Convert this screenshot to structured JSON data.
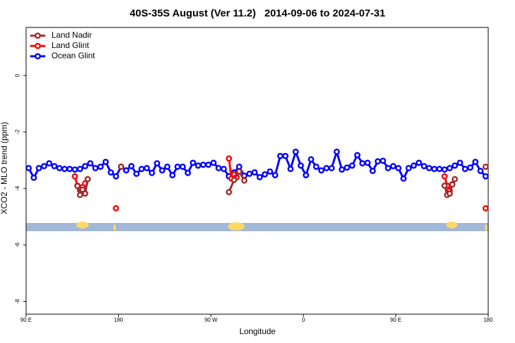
{
  "chart_data": {
    "type": "line",
    "title": "40S-35S August (Ver 11.2)   2014-09-06 to 2024-07-31",
    "x_label": "Longitude",
    "y_label": "XCO2 - MLO trend (ppm)",
    "xlim": [
      90,
      540
    ],
    "xticks": [
      {
        "value": 90,
        "label": "90 E"
      },
      {
        "value": 180,
        "label": "180"
      },
      {
        "value": 270,
        "label": "90 W"
      },
      {
        "value": 360,
        "label": "0"
      },
      {
        "value": 450,
        "label": "90 E"
      },
      {
        "value": 540,
        "label": "180"
      }
    ],
    "ylim": [
      -8.45,
      1.7
    ],
    "yticks": [
      0,
      -2,
      -4,
      -6,
      -8
    ],
    "legend": "top-left",
    "series": [
      {
        "name": "Land Nadir",
        "color": "#a52a2a",
        "x": [
          140,
          142.5,
          145,
          147.5,
          150,
          null,
          182.5,
          null,
          287.5,
          292.5,
          297.5,
          302.5,
          null,
          497.5,
          500,
          502.5,
          505,
          507.5,
          null,
          537.5
        ],
        "values": [
          -3.91,
          -4.23,
          -4.04,
          -4.18,
          -3.67,
          null,
          -3.23,
          null,
          -4.13,
          -3.7,
          -3.4,
          -3.72,
          null,
          -3.9,
          -4.23,
          -4.18,
          -3.86,
          -3.67,
          null,
          -3.23
        ]
      },
      {
        "name": "Land Glint",
        "color": "#ff0000",
        "x": [
          137.5,
          140,
          142.5,
          145,
          147.5,
          null,
          177.5,
          null,
          287.5,
          290,
          292.5,
          295,
          null,
          497.5,
          500,
          502.5,
          505,
          null,
          537.5
        ],
        "values": [
          -3.57,
          -3.9,
          -4.06,
          -3.95,
          -3.82,
          null,
          -4.7,
          null,
          -2.94,
          -3.65,
          -3.5,
          -3.6,
          null,
          -3.57,
          -3.9,
          -4.08,
          -3.85,
          null,
          -4.7
        ]
      },
      {
        "name": "Ocean Glint",
        "color": "#0000ff",
        "x": [
          92.5,
          97.5,
          102.5,
          107.5,
          112.5,
          117.5,
          122.5,
          127.5,
          132.5,
          137.5,
          142.5,
          147.5,
          152.5,
          157.5,
          162.5,
          167.5,
          172.5,
          177.5,
          182.5,
          187.5,
          192.5,
          197.5,
          202.5,
          207.5,
          212.5,
          217.5,
          222.5,
          227.5,
          232.5,
          237.5,
          242.5,
          247.5,
          252.5,
          257.5,
          262.5,
          267.5,
          272.5,
          277.5,
          282.5,
          287.5,
          292.5,
          297.5,
          302.5,
          307.5,
          312.5,
          317.5,
          322.5,
          327.5,
          332.5,
          337.5,
          342.5,
          347.5,
          352.5,
          357.5,
          362.5,
          367.5,
          372.5,
          377.5,
          382.5,
          387.5,
          392.5,
          397.5,
          402.5,
          407.5,
          412.5,
          417.5,
          422.5,
          427.5,
          432.5,
          437.5,
          442.5,
          447.5,
          452.5,
          457.5,
          462.5,
          467.5,
          472.5,
          477.5,
          482.5,
          487.5,
          492.5,
          497.5,
          502.5,
          507.5,
          512.5,
          517.5,
          522.5,
          527.5,
          532.5,
          537.5
        ],
        "values": [
          -3.28,
          -3.62,
          -3.28,
          -3.21,
          -3.11,
          -3.21,
          -3.28,
          -3.31,
          -3.31,
          -3.33,
          -3.31,
          -3.21,
          -3.11,
          -3.28,
          -3.23,
          -3.06,
          -3.43,
          -3.57,
          -3.23,
          -3.36,
          -3.21,
          -3.48,
          -3.31,
          -3.28,
          -3.45,
          -3.11,
          -3.36,
          -3.23,
          -3.53,
          -3.23,
          -3.23,
          -3.45,
          -3.09,
          -3.19,
          -3.16,
          -3.16,
          -3.09,
          -3.28,
          -3.31,
          -3.57,
          -3.43,
          -3.23,
          -3.55,
          -3.48,
          -3.43,
          -3.6,
          -3.5,
          -3.4,
          -3.53,
          -2.85,
          -2.85,
          -3.31,
          -2.7,
          -3.19,
          -3.53,
          -2.97,
          -3.23,
          -3.36,
          -3.28,
          -3.28,
          -2.7,
          -3.33,
          -3.26,
          -3.19,
          -2.82,
          -3.11,
          -3.09,
          -3.38,
          -3.04,
          -3.02,
          -3.28,
          -3.21,
          -3.28,
          -3.65,
          -3.28,
          -3.19,
          -3.09,
          -3.21,
          -3.28,
          -3.31,
          -3.31,
          -3.33,
          -3.28,
          -3.19,
          -3.09,
          -3.31,
          -3.26,
          -3.06,
          -3.38,
          -3.57
        ]
      }
    ]
  }
}
